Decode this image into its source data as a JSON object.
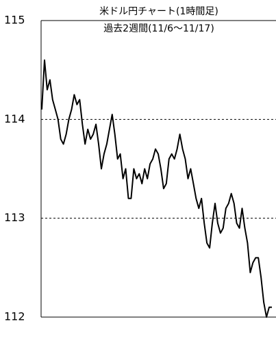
{
  "chart_data": {
    "type": "line",
    "title": "米ドル円チャート(1時間足)",
    "subtitle": "過去2週間(11/6～11/17)",
    "values": [
      114.1,
      114.6,
      114.3,
      114.4,
      114.2,
      114.1,
      114.0,
      113.8,
      113.75,
      113.85,
      114.0,
      114.1,
      114.25,
      114.15,
      114.2,
      113.95,
      113.75,
      113.9,
      113.8,
      113.85,
      113.95,
      113.75,
      113.5,
      113.65,
      113.75,
      113.9,
      114.05,
      113.85,
      113.6,
      113.65,
      113.4,
      113.5,
      113.2,
      113.2,
      113.5,
      113.4,
      113.45,
      113.35,
      113.5,
      113.4,
      113.55,
      113.6,
      113.7,
      113.65,
      113.5,
      113.3,
      113.35,
      113.6,
      113.65,
      113.6,
      113.7,
      113.85,
      113.7,
      113.6,
      113.4,
      113.5,
      113.35,
      113.2,
      113.1,
      113.2,
      112.95,
      112.75,
      112.7,
      112.95,
      113.15,
      112.95,
      112.85,
      112.9,
      113.1,
      113.15,
      113.25,
      113.15,
      112.95,
      112.9,
      113.1,
      112.9,
      112.75,
      112.45,
      112.55,
      112.6,
      112.6,
      112.4,
      112.15,
      112.0,
      112.1,
      112.1
    ],
    "color": "#000000",
    "ylim": [
      112,
      115
    ],
    "yticks": [
      112,
      113,
      114,
      115
    ],
    "grid": true
  }
}
